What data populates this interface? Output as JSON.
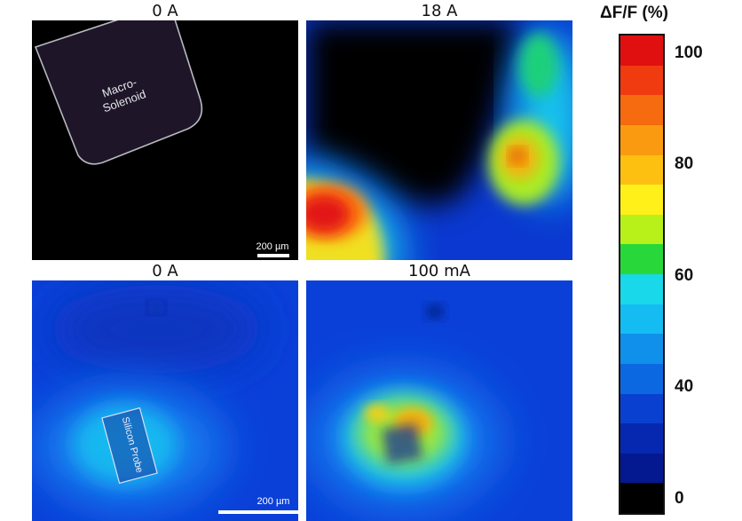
{
  "panels": {
    "top_left": {
      "label": "0 A",
      "overlay_text_line1": "Macro-",
      "overlay_text_line2": "Solenoid",
      "scale_bar": "200 µm"
    },
    "top_right": {
      "label": "18 A"
    },
    "bottom_left": {
      "label": "0 A",
      "overlay_text": "Silicon Probe",
      "scale_bar": "200 µm"
    },
    "bottom_right": {
      "label": "100 mA"
    }
  },
  "colorbar": {
    "title": "ΔF/F (%)",
    "ticks": [
      "100",
      "80",
      "60",
      "40",
      "0"
    ],
    "colors": [
      "#e01010",
      "#f03a10",
      "#f66a10",
      "#fa9a10",
      "#fdc010",
      "#fff01a",
      "#b8f01a",
      "#28d83a",
      "#18d8ea",
      "#14bcf2",
      "#1090ea",
      "#0c68e0",
      "#0a40d0",
      "#0628b0",
      "#041890",
      "#000000"
    ]
  }
}
